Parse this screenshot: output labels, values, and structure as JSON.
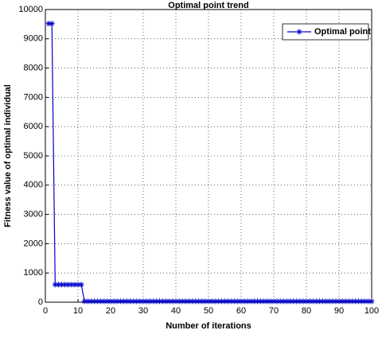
{
  "chart_data": {
    "type": "line",
    "title": "Optimal point trend",
    "x_label": "Number of iterations",
    "y_label": "Fitness value of optimal individual",
    "x": [
      1,
      2,
      3,
      4,
      5,
      6,
      7,
      8,
      9,
      10,
      11,
      12,
      13,
      14,
      15,
      16,
      17,
      18,
      19,
      20,
      21,
      22,
      23,
      24,
      25,
      26,
      27,
      28,
      29,
      30,
      31,
      32,
      33,
      34,
      35,
      36,
      37,
      38,
      39,
      40,
      41,
      42,
      43,
      44,
      45,
      46,
      47,
      48,
      49,
      50,
      51,
      52,
      53,
      54,
      55,
      56,
      57,
      58,
      59,
      60,
      61,
      62,
      63,
      64,
      65,
      66,
      67,
      68,
      69,
      70,
      71,
      72,
      73,
      74,
      75,
      76,
      77,
      78,
      79,
      80,
      81,
      82,
      83,
      84,
      85,
      86,
      87,
      88,
      89,
      90,
      91,
      92,
      93,
      94,
      95,
      96,
      97,
      98,
      99,
      100
    ],
    "series": [
      {
        "name": "Optimal point",
        "color": "#0000cc",
        "values": [
          9520,
          9520,
          600,
          600,
          600,
          600,
          600,
          600,
          600,
          600,
          600,
          30,
          30,
          30,
          30,
          30,
          30,
          30,
          30,
          30,
          30,
          30,
          30,
          30,
          30,
          30,
          30,
          30,
          30,
          30,
          30,
          30,
          30,
          30,
          30,
          30,
          30,
          30,
          30,
          30,
          30,
          30,
          30,
          30,
          30,
          30,
          30,
          30,
          30,
          30,
          30,
          30,
          30,
          30,
          30,
          30,
          30,
          30,
          30,
          30,
          30,
          30,
          30,
          30,
          30,
          30,
          30,
          30,
          30,
          30,
          30,
          30,
          30,
          30,
          30,
          30,
          30,
          30,
          30,
          30,
          30,
          30,
          30,
          30,
          30,
          30,
          30,
          30,
          30,
          30,
          30,
          30,
          30,
          30,
          30,
          30,
          30,
          30,
          30,
          30
        ]
      }
    ],
    "xlim": [
      0,
      100
    ],
    "xticks": [
      0,
      10,
      20,
      30,
      40,
      50,
      60,
      70,
      80,
      90,
      100
    ],
    "ylim": [
      0,
      10000
    ],
    "yticks": [
      0,
      1000,
      2000,
      3000,
      4000,
      5000,
      6000,
      7000,
      8000,
      9000,
      10000
    ],
    "grid": true,
    "legend": "top-right"
  }
}
